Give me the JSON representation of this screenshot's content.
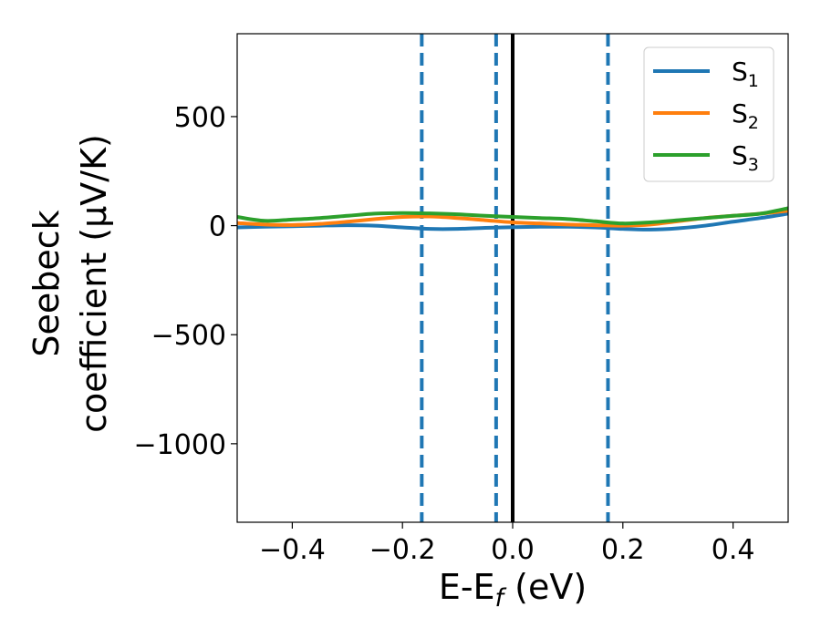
{
  "chart_data": {
    "type": "line",
    "title": "",
    "xlabel": "E-E",
    "xlabel_sub": "f",
    "xlabel_suffix": " (eV)",
    "ylabel_line1": "Seebeck",
    "ylabel_line2": "coefficient  (μV/K)",
    "xlim": [
      -0.5,
      0.5
    ],
    "ylim": [
      -1360,
      880
    ],
    "xticks": [
      -0.4,
      -0.2,
      0.0,
      0.2,
      0.4
    ],
    "xtick_labels": [
      "−0.4",
      "−0.2",
      "0.0",
      "0.2",
      "0.4"
    ],
    "yticks": [
      500,
      0,
      -500,
      -1000
    ],
    "ytick_labels": [
      "500",
      "0",
      "−500",
      "−1000"
    ],
    "grid": false,
    "legend_position": "top-right",
    "vlines": [
      {
        "x": -0.165,
        "style": "dashed",
        "color": "#1f77b4"
      },
      {
        "x": -0.03,
        "style": "dashed",
        "color": "#1f77b4"
      },
      {
        "x": 0.0,
        "style": "solid",
        "color": "#000000"
      },
      {
        "x": 0.173,
        "style": "dashed",
        "color": "#1f77b4"
      }
    ],
    "series": [
      {
        "name": "S",
        "sub": "1",
        "color": "#1f77b4",
        "x": [
          -0.5,
          -0.45,
          -0.4,
          -0.35,
          -0.3,
          -0.25,
          -0.2,
          -0.15,
          -0.1,
          -0.05,
          0.0,
          0.05,
          0.1,
          0.15,
          0.2,
          0.25,
          0.3,
          0.35,
          0.4,
          0.45,
          0.5
        ],
        "y": [
          -8,
          -5,
          -3,
          0,
          2,
          0,
          -8,
          -15,
          -15,
          -10,
          -7,
          -5,
          -5,
          -8,
          -15,
          -18,
          -12,
          0,
          18,
          35,
          55
        ]
      },
      {
        "name": "S",
        "sub": "2",
        "color": "#ff7f0e",
        "x": [
          -0.5,
          -0.45,
          -0.4,
          -0.35,
          -0.3,
          -0.25,
          -0.2,
          -0.15,
          -0.1,
          -0.05,
          0.0,
          0.05,
          0.1,
          0.15,
          0.2,
          0.25,
          0.3,
          0.35,
          0.4,
          0.45,
          0.5
        ],
        "y": [
          12,
          5,
          3,
          8,
          18,
          30,
          40,
          42,
          35,
          25,
          15,
          10,
          5,
          2,
          0,
          5,
          20,
          35,
          45,
          55,
          68
        ]
      },
      {
        "name": "S",
        "sub": "3",
        "color": "#2ca02c",
        "x": [
          -0.5,
          -0.45,
          -0.4,
          -0.35,
          -0.3,
          -0.25,
          -0.2,
          -0.15,
          -0.1,
          -0.05,
          0.0,
          0.05,
          0.1,
          0.15,
          0.2,
          0.25,
          0.3,
          0.35,
          0.4,
          0.45,
          0.5
        ],
        "y": [
          40,
          22,
          28,
          35,
          45,
          55,
          58,
          56,
          52,
          45,
          40,
          35,
          30,
          20,
          10,
          15,
          25,
          35,
          45,
          55,
          80
        ]
      }
    ]
  }
}
